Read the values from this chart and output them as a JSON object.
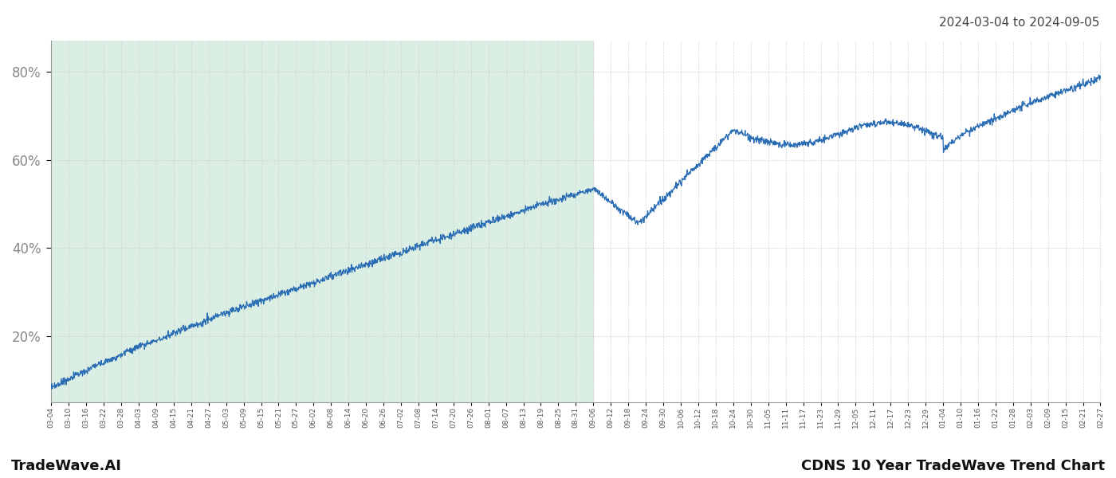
{
  "title_top_right": "2024-03-04 to 2024-09-05",
  "label_bottom_left": "TradeWave.AI",
  "label_bottom_right": "CDNS 10 Year TradeWave Trend Chart",
  "y_ticks": [
    20,
    40,
    60,
    80
  ],
  "y_min": 5,
  "y_max": 87,
  "line_color": "#2a6db5",
  "highlight_color": "#daeee3",
  "grid_color": "#cccccc",
  "background_color": "#ffffff",
  "x_labels": [
    "03-04",
    "03-10",
    "03-16",
    "03-22",
    "03-28",
    "04-03",
    "04-09",
    "04-15",
    "04-21",
    "04-27",
    "05-03",
    "05-09",
    "05-15",
    "05-21",
    "05-27",
    "06-02",
    "06-08",
    "06-14",
    "06-20",
    "06-26",
    "07-02",
    "07-08",
    "07-14",
    "07-20",
    "07-26",
    "08-01",
    "08-07",
    "08-13",
    "08-19",
    "08-25",
    "08-31",
    "09-06",
    "09-12",
    "09-18",
    "09-24",
    "09-30",
    "10-06",
    "10-12",
    "10-18",
    "10-24",
    "10-30",
    "11-05",
    "11-11",
    "11-17",
    "11-23",
    "11-29",
    "12-05",
    "12-11",
    "12-17",
    "12-23",
    "12-29",
    "01-04",
    "01-10",
    "01-16",
    "01-22",
    "01-28",
    "02-03",
    "02-09",
    "02-15",
    "02-21",
    "02-27"
  ],
  "highlight_end_label": "09-06"
}
